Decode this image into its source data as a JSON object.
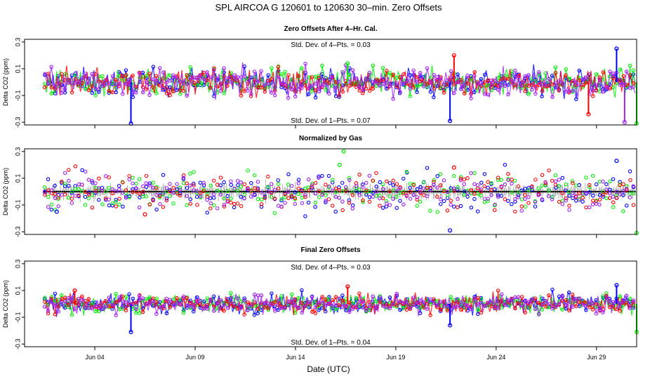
{
  "chart_data": {
    "type": "scatter",
    "title": "SPL    AIRCOA G    120601 to 120630    30–min. Zero Offsets",
    "xlabel": "Date (UTC)",
    "x_range_days": [
      0.5,
      31.0
    ],
    "x_ticks": [
      {
        "day": 4,
        "label": "Jun 04"
      },
      {
        "day": 9,
        "label": "Jun 09"
      },
      {
        "day": 14,
        "label": "Jun 14"
      },
      {
        "day": 19,
        "label": "Jun 19"
      },
      {
        "day": 24,
        "label": "Jun 24"
      },
      {
        "day": 29,
        "label": "Jun 29"
      }
    ],
    "data_x_range_days": [
      1.5,
      31.0
    ],
    "series_colors": {
      "gas1": "#0000ff",
      "gas2": "#00ee00",
      "gas3": "#ff0000",
      "gas4": "#a020f0",
      "gray": "#808080",
      "black": "#000000"
    },
    "panels": [
      {
        "title": "Zero Offsets After 4–Hr. Cal.",
        "ylabel": "Delta CO2 (ppm)",
        "ylim": [
          -0.32,
          0.32
        ],
        "y_ticks": [
          "-0.3",
          "-0.1",
          "0.1",
          "0.3"
        ],
        "y_tick_values": [
          -0.3,
          -0.1,
          0.1,
          0.3
        ],
        "stat_top": "Std. Dev. of 4–Pts. =  0.03",
        "stat_bottom": "Std. Dev. of 1–Pts. =  0.07",
        "spread": 0.05,
        "spikes": [
          {
            "day": 5.8,
            "value": -0.31,
            "color": "#0000ff"
          },
          {
            "day": 21.7,
            "value": -0.29,
            "color": "#0000ff"
          },
          {
            "day": 21.9,
            "value": 0.2,
            "color": "#ff0000"
          },
          {
            "day": 30.0,
            "value": 0.25,
            "color": "#0000ff"
          },
          {
            "day": 30.4,
            "value": -0.3,
            "color": "#a020f0"
          },
          {
            "day": 31.0,
            "value": -0.31,
            "color": "#00ee00"
          },
          {
            "day": 28.6,
            "value": -0.24,
            "color": "#ff0000"
          },
          {
            "day": 16.6,
            "value": 0.14,
            "color": "#00ee00"
          }
        ]
      },
      {
        "title": "Normalized by Gas",
        "ylabel": "Delta CO2 (ppm)",
        "ylim": [
          -0.32,
          0.32
        ],
        "y_ticks": [
          "-0.3",
          "-0.1",
          "0.1",
          "0.3"
        ],
        "y_tick_values": [
          -0.3,
          -0.1,
          0.1,
          0.3
        ],
        "spread": 0.07,
        "spikes": [
          {
            "day": 16.4,
            "value": 0.3,
            "color": "#00ee00"
          },
          {
            "day": 16.2,
            "value": 0.2,
            "color": "#00ee00"
          },
          {
            "day": 21.7,
            "value": -0.29,
            "color": "#0000ff"
          },
          {
            "day": 21.9,
            "value": 0.18,
            "color": "#ff0000"
          },
          {
            "day": 30.0,
            "value": 0.23,
            "color": "#0000ff"
          },
          {
            "day": 31.0,
            "value": -0.31,
            "color": "#00ee00"
          },
          {
            "day": 2.1,
            "value": -0.15,
            "color": "#0000ff"
          },
          {
            "day": 6.5,
            "value": -0.17,
            "color": "#ff0000"
          }
        ]
      },
      {
        "title": "Final Zero Offsets",
        "ylabel": "Delta CO2 (ppm)",
        "ylim": [
          -0.32,
          0.32
        ],
        "y_ticks": [
          "-0.3",
          "-0.1",
          "0.1",
          "0.3"
        ],
        "y_tick_values": [
          -0.3,
          -0.1,
          0.1,
          0.3
        ],
        "stat_top": "Std. Dev. of 4–Pts. =  0.03",
        "stat_bottom": "Std. Dev. of 1–Pts. =  0.04",
        "spread": 0.035,
        "spikes": [
          {
            "day": 5.8,
            "value": -0.21,
            "color": "#0000ff"
          },
          {
            "day": 31.0,
            "value": -0.21,
            "color": "#00ee00"
          },
          {
            "day": 30.0,
            "value": 0.14,
            "color": "#0000ff"
          },
          {
            "day": 16.6,
            "value": 0.13,
            "color": "#ff0000"
          },
          {
            "day": 21.7,
            "value": -0.16,
            "color": "#0000ff"
          },
          {
            "day": 3.0,
            "value": 0.1,
            "color": "#ff0000"
          }
        ]
      }
    ]
  }
}
